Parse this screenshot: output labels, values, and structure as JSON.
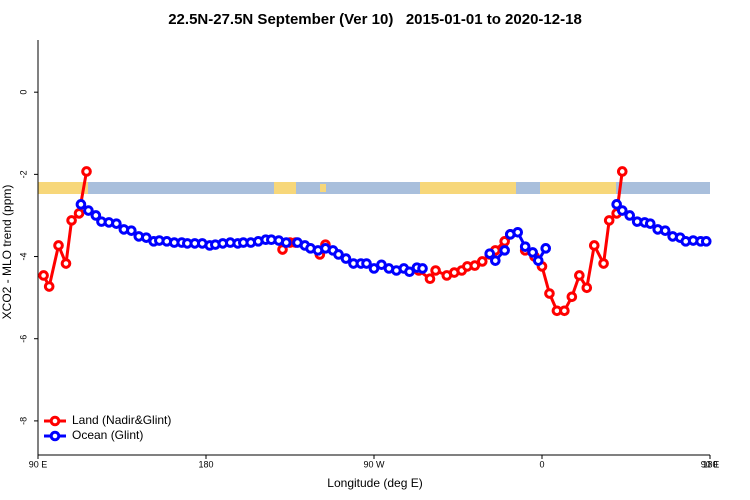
{
  "chart_data": {
    "type": "line",
    "title": "22.5N-27.5N September (Ver 10)   2015-01-01 to 2020-12-18",
    "x_label": "Longitude (deg E)",
    "y_label": "XCO2 - MLO trend (ppm)",
    "xlim": [
      90,
      450
    ],
    "xticks": [
      {
        "value": 90,
        "label": "90 E"
      },
      {
        "value": 180,
        "label": "180"
      },
      {
        "value": 270,
        "label": "90 W"
      },
      {
        "value": 360,
        "label": "0"
      },
      {
        "value": 450,
        "label": "90 E"
      },
      {
        "value": 540,
        "label": "180"
      }
    ],
    "ylim": [
      -8.83,
      1.27
    ],
    "yticks": [
      0,
      -2,
      -4,
      -6,
      -8
    ],
    "series": [
      {
        "name": "Land (Nadir&Glint)",
        "color": "#ff0000",
        "x": [
          93,
          96,
          101,
          105,
          108,
          112,
          116,
          null,
          221,
          225,
          228,
          null,
          241,
          244,
          null,
          294,
          300,
          303,
          309,
          313,
          317,
          320,
          324,
          328,
          332,
          335,
          340,
          343,
          null,
          351,
          356,
          360,
          364,
          368,
          372,
          376,
          380,
          384,
          388,
          393,
          396,
          400,
          403
        ],
        "values": [
          -4.46,
          -4.73,
          -3.73,
          -4.17,
          -3.12,
          -2.95,
          -1.93,
          null,
          -3.83,
          -3.66,
          -3.66,
          null,
          -3.95,
          -3.71,
          null,
          -4.34,
          -4.54,
          -4.34,
          -4.46,
          -4.39,
          -4.34,
          -4.24,
          -4.22,
          -4.12,
          -3.95,
          -3.85,
          -3.63,
          -3.46,
          null,
          -3.85,
          -4.0,
          -4.24,
          -4.9,
          -5.32,
          -5.32,
          -4.98,
          -4.46,
          -4.76,
          -3.73,
          -4.17,
          -3.12,
          -2.95,
          -1.93
        ]
      },
      {
        "name": "Ocean (Glint)",
        "color": "#0000ff",
        "x": [
          113,
          117,
          121,
          124,
          128,
          132,
          136,
          140,
          144,
          148,
          152,
          155,
          159,
          163,
          167,
          170,
          174,
          178,
          182,
          185,
          189,
          193,
          197,
          200,
          204,
          208,
          212,
          215,
          219,
          223,
          229,
          233,
          236,
          240,
          244,
          248,
          251,
          255,
          259,
          263,
          266,
          270,
          274,
          278,
          282,
          286,
          289,
          293,
          296,
          null,
          332,
          335,
          340,
          343,
          347,
          351,
          355,
          358,
          362,
          null,
          400,
          403,
          407,
          411,
          415,
          418,
          422,
          426,
          430,
          434,
          437,
          441,
          445,
          448
        ],
        "values": [
          -2.73,
          -2.88,
          -3.0,
          -3.15,
          -3.17,
          -3.2,
          -3.34,
          -3.37,
          -3.51,
          -3.54,
          -3.63,
          -3.61,
          -3.63,
          -3.66,
          -3.66,
          -3.68,
          -3.68,
          -3.68,
          -3.73,
          -3.71,
          -3.68,
          -3.66,
          -3.68,
          -3.66,
          -3.66,
          -3.63,
          -3.59,
          -3.59,
          -3.61,
          -3.66,
          -3.66,
          -3.73,
          -3.8,
          -3.85,
          -3.8,
          -3.85,
          -3.95,
          -4.05,
          -4.17,
          -4.17,
          -4.17,
          -4.29,
          -4.2,
          -4.29,
          -4.34,
          -4.29,
          -4.37,
          -4.27,
          -4.29,
          null,
          -3.93,
          -4.1,
          -3.85,
          -3.46,
          -3.41,
          -3.76,
          -3.9,
          -4.1,
          -3.8,
          null,
          -2.73,
          -2.88,
          -3.0,
          -3.15,
          -3.17,
          -3.2,
          -3.34,
          -3.37,
          -3.51,
          -3.54,
          -3.63,
          -3.61,
          -3.63,
          -3.63
        ]
      }
    ],
    "legend": "bottom-left",
    "grid": false
  }
}
